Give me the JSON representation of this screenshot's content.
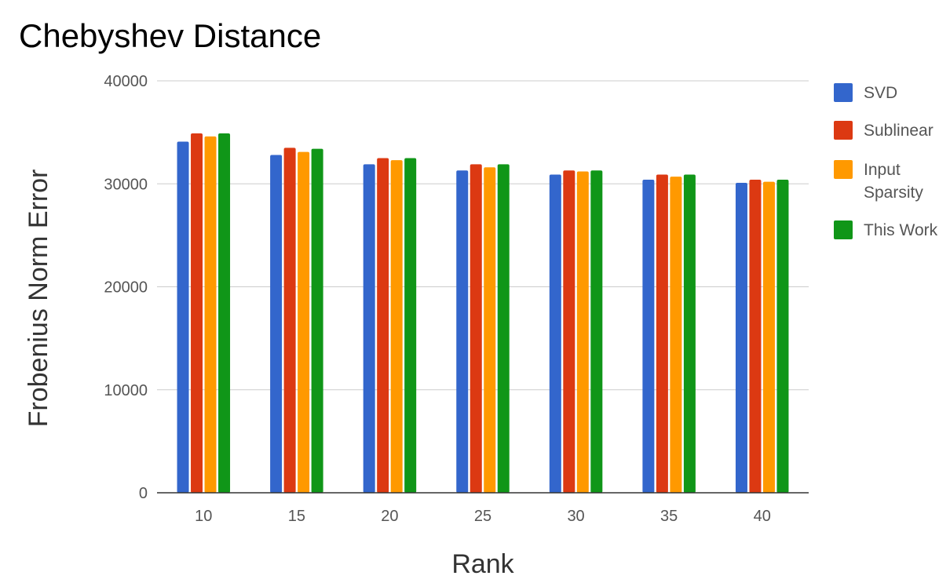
{
  "chart_data": {
    "type": "bar",
    "title": "Chebyshev Distance",
    "xlabel": "Rank",
    "ylabel": "Frobenius Norm Error",
    "categories": [
      "10",
      "15",
      "20",
      "25",
      "30",
      "35",
      "40"
    ],
    "ylim": [
      0,
      40000
    ],
    "yticks": [
      0,
      10000,
      20000,
      30000,
      40000
    ],
    "grid": true,
    "legend_position": "right",
    "series": [
      {
        "name": "SVD",
        "color": "#3366cc",
        "values": [
          34100,
          32800,
          31900,
          31300,
          30900,
          30400,
          30100
        ]
      },
      {
        "name": "Sublinear",
        "color": "#dc3912",
        "values": [
          34900,
          33500,
          32500,
          31900,
          31300,
          30900,
          30400
        ]
      },
      {
        "name": "Input Sparsity",
        "label_lines": [
          "Input",
          "Sparsity"
        ],
        "color": "#ff9900",
        "values": [
          34600,
          33100,
          32300,
          31600,
          31200,
          30700,
          30200
        ]
      },
      {
        "name": "This Work",
        "color": "#109618",
        "values": [
          34900,
          33400,
          32500,
          31900,
          31300,
          30900,
          30400
        ]
      }
    ]
  }
}
